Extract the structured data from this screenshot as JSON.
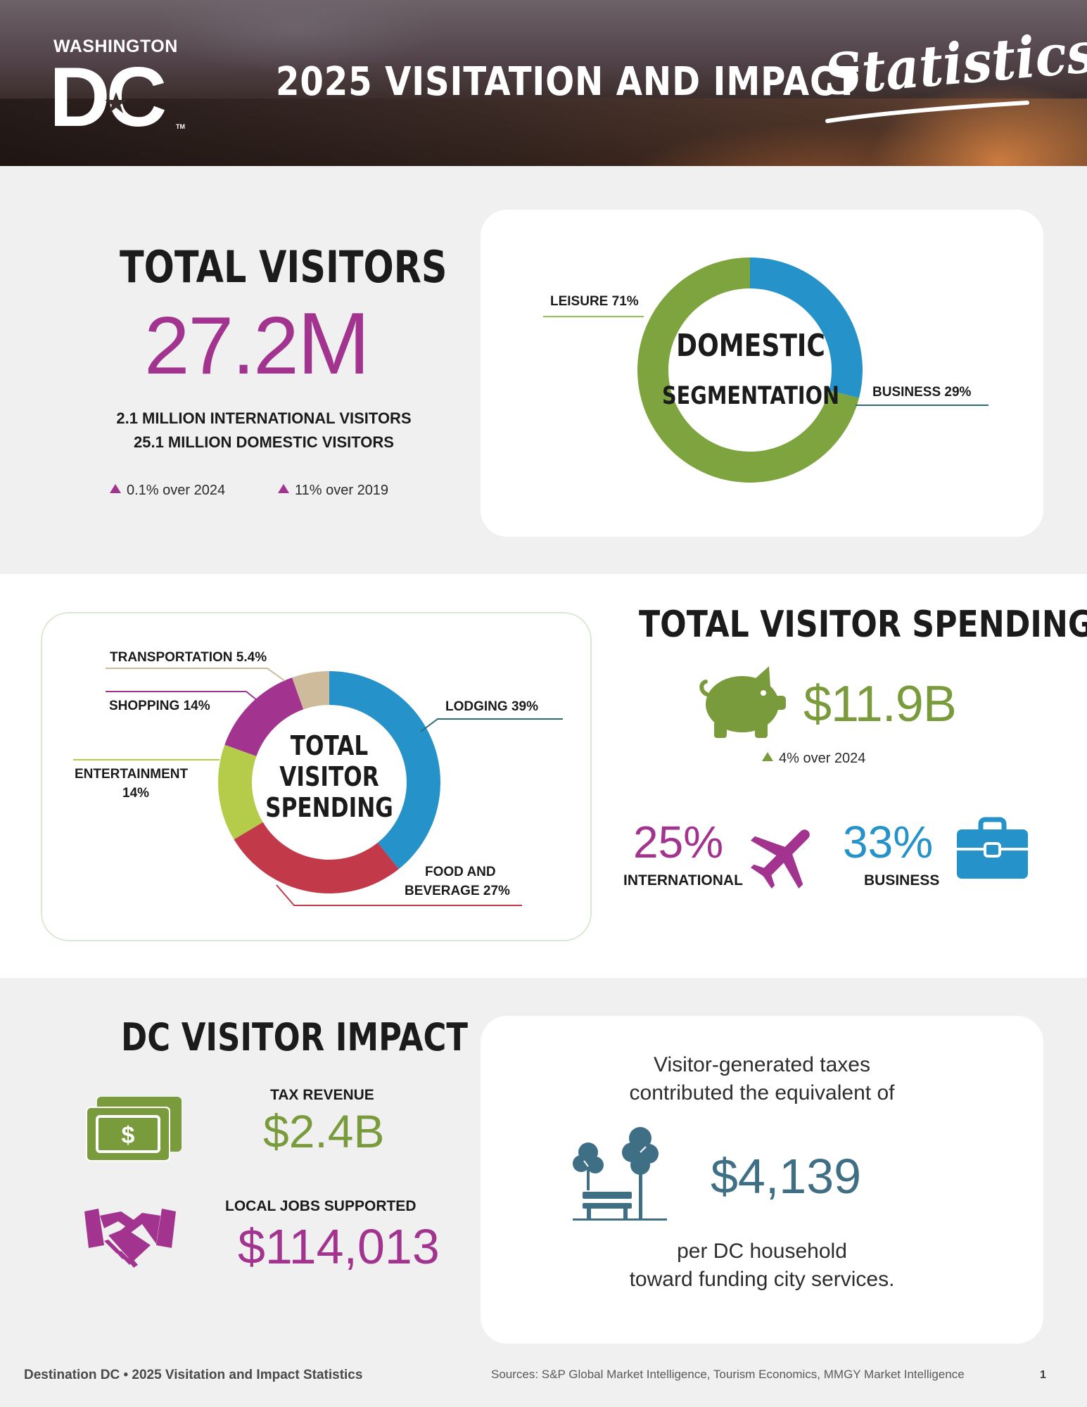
{
  "header": {
    "logo_small": "WASHINGTON",
    "logo_big": "DC",
    "logo_tm": "TM",
    "title": "2025 VISITATION AND IMPACT",
    "title_script": "Statistics"
  },
  "total_visitors": {
    "heading": "TOTAL VISITORS",
    "value": "27.2",
    "unit": "M",
    "international": "2.1 MILLION INTERNATIONAL VISITORS",
    "domestic": "25.1 MILLION DOMESTIC VISITORS",
    "change_2024": "0.1% over 2024",
    "change_2019": "11% over 2019"
  },
  "domestic_segmentation": {
    "center_line1": "DOMESTIC",
    "center_line2": "SEGMENTATION",
    "labels": {
      "leisure": "LEISURE 71%",
      "business": "BUSINESS 29%"
    }
  },
  "spending_breakdown": {
    "center_line1": "TOTAL",
    "center_line2": "VISITOR",
    "center_line3": "SPENDING",
    "labels": {
      "transportation": "TRANSPORTATION 5.4%",
      "shopping": "SHOPPING 14%",
      "entertainment_line1": "ENTERTAINMENT",
      "entertainment_line2": "14%",
      "lodging": "LODGING 39%",
      "food_line1": "FOOD AND",
      "food_line2": "BEVERAGE 27%"
    }
  },
  "chart_data": [
    {
      "type": "pie",
      "title": "DOMESTIC SEGMENTATION",
      "categories": [
        "BUSINESS",
        "LEISURE"
      ],
      "values": [
        29,
        71
      ],
      "colors": [
        "#2592c9",
        "#7da43f"
      ],
      "legend": "none"
    },
    {
      "type": "pie",
      "title": "TOTAL VISITOR SPENDING",
      "categories": [
        "LODGING",
        "FOOD AND BEVERAGE",
        "ENTERTAINMENT",
        "SHOPPING",
        "TRANSPORTATION"
      ],
      "values": [
        39,
        27,
        14,
        14,
        5.4
      ],
      "colors": [
        "#2592c9",
        "#c23a4a",
        "#b5cc4a",
        "#a2338f",
        "#cdbb9c"
      ],
      "legend": "none"
    }
  ],
  "total_spending": {
    "heading": "TOTAL VISITOR SPENDING",
    "value": "$11.9B",
    "change": "4% over 2024",
    "international_pct": "25%",
    "international_label": "INTERNATIONAL",
    "business_pct": "33%",
    "business_label": "BUSINESS"
  },
  "impact": {
    "heading": "DC VISITOR IMPACT",
    "tax_label": "TAX REVENUE",
    "tax_value": "$2.4B",
    "jobs_label": "LOCAL JOBS SUPPORTED",
    "jobs_value": "$114,013",
    "household_intro_line1": "Visitor-generated taxes",
    "household_intro_line2": "contributed the equivalent of",
    "household_value": "$4,139",
    "household_outro_line1": "per DC household",
    "household_outro_line2": "toward funding city services."
  },
  "icons": [
    "piggy-bank-icon",
    "airplane-icon",
    "briefcase-icon",
    "cash-icon",
    "handshake-icon",
    "park-bench-trees-icon"
  ],
  "colors": {
    "purple": "#a2338f",
    "green": "#7a9b3c",
    "blue": "#2592c9",
    "teal": "#3f6f84",
    "red": "#c23a4a"
  },
  "footer": {
    "left": "Destination DC • 2025 Visitation and Impact Statistics",
    "sources": "Sources: S&P Global Market Intelligence, Tourism Economics, MMGY Market Intelligence",
    "page": "1"
  }
}
